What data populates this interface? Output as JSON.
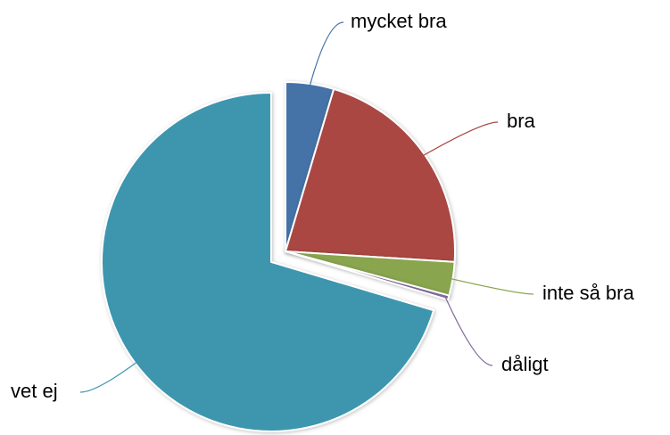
{
  "chart_data": {
    "type": "pie",
    "categories": [
      "mycket bra",
      "bra",
      "inte så bra",
      "dåligt",
      "vet ej"
    ],
    "values": [
      4.6,
      21.4,
      3.2,
      0.4,
      70.4
    ],
    "colors": [
      "#4572a7",
      "#aa4643",
      "#89a54e",
      "#80699b",
      "#3d96ae"
    ],
    "sliced": "vet ej"
  }
}
